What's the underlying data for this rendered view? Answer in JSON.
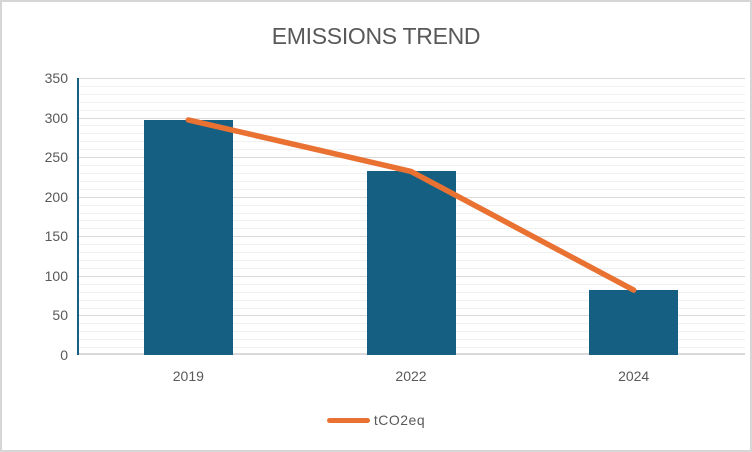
{
  "chart_data": {
    "type": "combo",
    "title": "EMISSIONS TREND",
    "categories": [
      "2019",
      "2022",
      "2024"
    ],
    "series": [
      {
        "name": "tCO2eq",
        "type": "bar",
        "values": [
          297,
          232,
          82
        ],
        "color": "#156082"
      },
      {
        "name": "tCO2eq",
        "type": "line",
        "values": [
          297,
          232,
          82
        ],
        "color": "#E97132"
      }
    ],
    "xlabel": "",
    "ylabel": "",
    "ylim": [
      0,
      350
    ],
    "y_major_step": 50,
    "y_minor_step": 10,
    "y_major_ticks": [
      0,
      50,
      100,
      150,
      200,
      250,
      300,
      350
    ],
    "grid": true,
    "legend_position": "bottom",
    "legend_entries": [
      "tCO2eq"
    ],
    "colors": {
      "bar_fill": "#156082",
      "line_stroke": "#E97132",
      "axis_line": "#156082",
      "baseline": "#D9D9D9",
      "gridline_major": "#D9D9D9",
      "gridline_minor": "#F1F1F1",
      "text": "#595959",
      "frame_border": "#D6D6D6",
      "background": "#FFFFFF"
    }
  }
}
